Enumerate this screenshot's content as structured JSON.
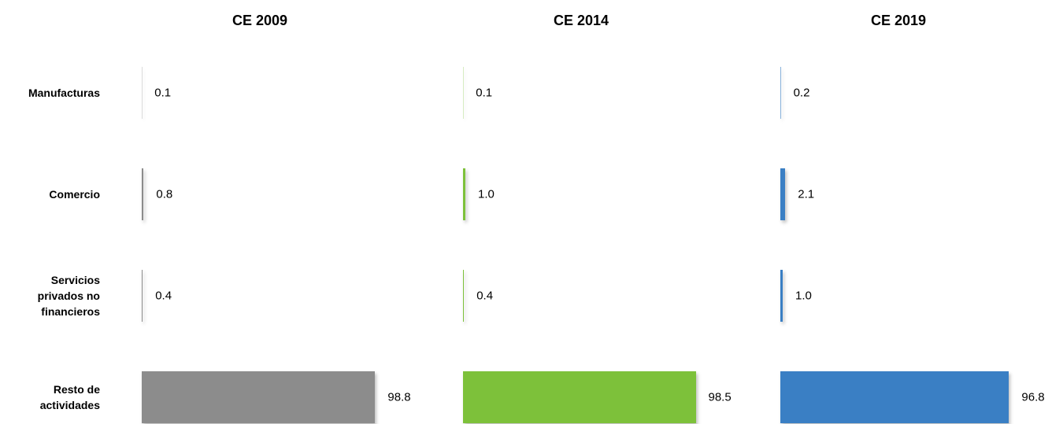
{
  "chart_data": {
    "type": "bar",
    "orientation": "horizontal",
    "categories": [
      "Manufacturas",
      "Comercio",
      "Servicios privados no financieros",
      "Resto de actividades"
    ],
    "series": [
      {
        "name": "CE 2009",
        "color": "#8c8c8c",
        "values": [
          0.1,
          0.8,
          0.4,
          98.8
        ],
        "value_labels": [
          "0.1",
          "0.8",
          "0.4",
          "98.8"
        ]
      },
      {
        "name": "CE 2014",
        "color": "#7dc13a",
        "values": [
          0.1,
          1.0,
          0.4,
          98.5
        ],
        "value_labels": [
          "0.1",
          "1.0",
          "0.4",
          "98.5"
        ]
      },
      {
        "name": "CE 2019",
        "color": "#3a7fc4",
        "values": [
          0.2,
          2.1,
          1.0,
          96.8
        ],
        "value_labels": [
          "0.2",
          "2.1",
          "1.0",
          "96.8"
        ]
      }
    ]
  }
}
